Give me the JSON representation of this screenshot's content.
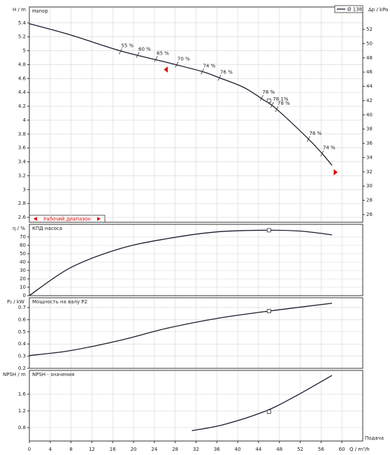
{
  "chart_data": [
    {
      "type": "line",
      "title": "Напор",
      "ylabel": "H / m",
      "y2label": "Δp / kPa",
      "xlim": [
        0,
        64
      ],
      "ylim": [
        2.53,
        5.63
      ],
      "yticks": [
        2.6,
        2.8,
        3,
        3.2,
        3.4,
        3.6,
        3.8,
        4,
        4.2,
        4.4,
        4.6,
        4.8,
        5,
        5.2,
        5.4
      ],
      "y2lim": [
        24.92,
        55.14
      ],
      "y2ticks": [
        26,
        28,
        30,
        32,
        34,
        36,
        38,
        40,
        42,
        44,
        46,
        48,
        50,
        52
      ],
      "grid": true,
      "legend": "upper right",
      "series": [
        {
          "name": "Ø 138",
          "color": "#1a1a2e",
          "x": [
            0,
            7.8,
            17.4,
            26.5,
            33.2,
            36.5,
            41.2,
            45,
            47.3,
            53.3,
            56.2,
            58.1
          ],
          "values": [
            5.39,
            5.23,
            5.0,
            4.83,
            4.7,
            4.61,
            4.47,
            4.29,
            4.17,
            3.75,
            3.52,
            3.35
          ]
        }
      ],
      "annotations": [
        {
          "x": 17.5,
          "y": 4.99,
          "label": "55 %"
        },
        {
          "x": 20.8,
          "y": 4.94,
          "label": "60 %"
        },
        {
          "x": 24.3,
          "y": 4.88,
          "label": "65 %"
        },
        {
          "x": 28.3,
          "y": 4.8,
          "label": "70 %"
        },
        {
          "x": 33.2,
          "y": 4.7,
          "label": "74 %"
        },
        {
          "x": 36.5,
          "y": 4.61,
          "label": "76 %"
        },
        {
          "x": 44.6,
          "y": 4.32,
          "label": "78 %"
        },
        {
          "x": 46.6,
          "y": 4.22,
          "label": "78.1%"
        },
        {
          "x": 47.5,
          "y": 4.16,
          "label": "78 %"
        },
        {
          "x": 53.6,
          "y": 3.73,
          "label": "76 %"
        },
        {
          "x": 56.2,
          "y": 3.52,
          "label": "74 %"
        }
      ],
      "duty_point": {
        "x": 46,
        "y": 4.28
      },
      "operating_range": [
        26.5,
        58.5
      ],
      "range_label": "Рабочий диапазон"
    },
    {
      "type": "line",
      "title": "КПД насоса",
      "ylabel": "η / %",
      "xlim": [
        0,
        64
      ],
      "ylim": [
        0,
        85
      ],
      "yticks": [
        0,
        10,
        20,
        30,
        40,
        50,
        60,
        70
      ],
      "grid": true,
      "series": [
        {
          "color": "#1a1a2e",
          "x": [
            0,
            7.8,
            17.4,
            26.5,
            35.9,
            45,
            52,
            58.1
          ],
          "values": [
            0,
            33,
            56,
            68,
            76,
            78,
            77,
            72.5
          ]
        }
      ],
      "duty_point": {
        "x": 46,
        "y": 78
      }
    },
    {
      "type": "line",
      "title": "Мощность на валу P2",
      "ylabel": "P₂ / kW",
      "xlim": [
        0,
        64
      ],
      "ylim": [
        0.2,
        0.78
      ],
      "yticks": [
        0.2,
        0.3,
        0.4,
        0.5,
        0.6,
        0.7
      ],
      "grid": true,
      "series": [
        {
          "color": "#1a1a2e",
          "x": [
            0,
            7.8,
            17.4,
            26.5,
            36,
            45,
            58.1
          ],
          "values": [
            0.305,
            0.345,
            0.43,
            0.53,
            0.61,
            0.665,
            0.735
          ]
        }
      ],
      "duty_point": {
        "x": 46,
        "y": 0.67
      }
    },
    {
      "type": "line",
      "title": "NPSH - значения",
      "ylabel": "NPSH / m",
      "xlabel": "Q / m³/h",
      "xcaption": "Подача",
      "xlim": [
        0,
        64
      ],
      "xticks": [
        0,
        4,
        8,
        12,
        16,
        20,
        24,
        28,
        32,
        36,
        40,
        44,
        48,
        52,
        56,
        60
      ],
      "ylim": [
        0.48,
        2.17
      ],
      "yticks": [
        0.8,
        1.2,
        1.6
      ],
      "grid": true,
      "series": [
        {
          "color": "#1a1a2e",
          "x": [
            31.2,
            37.2,
            45,
            50.6,
            58.1
          ],
          "values": [
            0.73,
            0.87,
            1.18,
            1.52,
            2.05
          ]
        }
      ],
      "duty_point": {
        "x": 46,
        "y": 1.18
      }
    }
  ]
}
